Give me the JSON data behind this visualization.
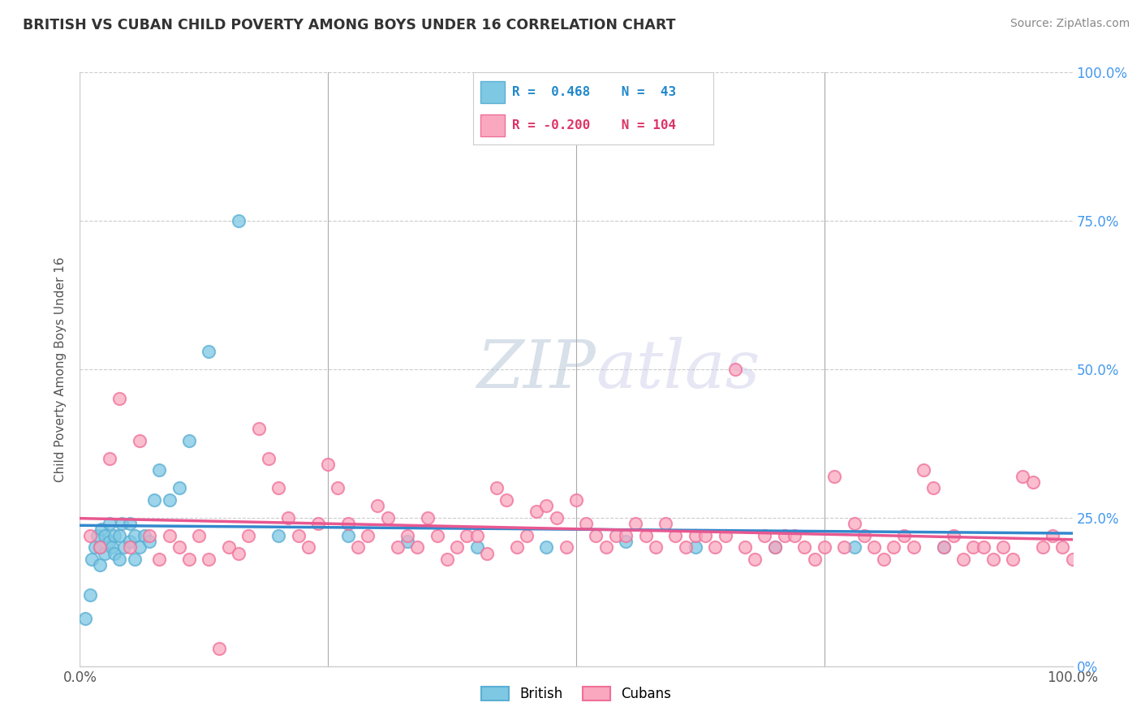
{
  "title": "BRITISH VS CUBAN CHILD POVERTY AMONG BOYS UNDER 16 CORRELATION CHART",
  "source": "Source: ZipAtlas.com",
  "ylabel": "Child Poverty Among Boys Under 16",
  "xlim": [
    0,
    100
  ],
  "ylim": [
    0,
    100
  ],
  "british_color": "#7ec8e3",
  "cuban_color": "#f9a8c0",
  "british_edge_color": "#5aafd4",
  "cuban_edge_color": "#f07098",
  "british_line_color": "#3388cc",
  "cuban_line_color": "#e85890",
  "watermark_zip": "ZIP",
  "watermark_atlas": "atlas",
  "british_x": [
    0.5,
    1,
    1.2,
    1.5,
    1.8,
    2,
    2,
    2.2,
    2.5,
    2.5,
    3,
    3,
    3.2,
    3.5,
    3.5,
    4,
    4,
    4.2,
    4.5,
    5,
    5,
    5.5,
    5.5,
    6,
    6.5,
    7,
    7.5,
    8,
    9,
    10,
    11,
    13,
    16,
    20,
    27,
    33,
    40,
    47,
    55,
    62,
    70,
    78,
    87
  ],
  "british_y": [
    8,
    12,
    18,
    20,
    22,
    17,
    20,
    23,
    19,
    22,
    21,
    24,
    20,
    19,
    22,
    18,
    22,
    24,
    20,
    21,
    24,
    18,
    22,
    20,
    22,
    21,
    28,
    33,
    28,
    30,
    38,
    53,
    75,
    22,
    22,
    21,
    20,
    20,
    21,
    20,
    20,
    20,
    20
  ],
  "cuban_x": [
    1,
    2,
    3,
    4,
    5,
    6,
    7,
    8,
    9,
    10,
    11,
    12,
    13,
    14,
    15,
    16,
    17,
    18,
    19,
    20,
    21,
    22,
    23,
    24,
    25,
    26,
    27,
    28,
    29,
    30,
    31,
    32,
    33,
    34,
    35,
    36,
    37,
    38,
    39,
    40,
    41,
    42,
    43,
    44,
    45,
    46,
    47,
    48,
    49,
    50,
    51,
    52,
    53,
    54,
    55,
    56,
    57,
    58,
    59,
    60,
    61,
    62,
    63,
    64,
    65,
    66,
    67,
    68,
    69,
    70,
    71,
    72,
    73,
    74,
    75,
    76,
    77,
    78,
    79,
    80,
    81,
    82,
    83,
    84,
    85,
    86,
    87,
    88,
    89,
    90,
    91,
    92,
    93,
    94,
    95,
    96,
    97,
    98,
    99,
    100,
    101,
    102,
    103,
    104
  ],
  "cuban_y": [
    22,
    20,
    35,
    45,
    20,
    38,
    22,
    18,
    22,
    20,
    18,
    22,
    18,
    3,
    20,
    19,
    22,
    40,
    35,
    30,
    25,
    22,
    20,
    24,
    34,
    30,
    24,
    20,
    22,
    27,
    25,
    20,
    22,
    20,
    25,
    22,
    18,
    20,
    22,
    22,
    19,
    30,
    28,
    20,
    22,
    26,
    27,
    25,
    20,
    28,
    24,
    22,
    20,
    22,
    22,
    24,
    22,
    20,
    24,
    22,
    20,
    22,
    22,
    20,
    22,
    50,
    20,
    18,
    22,
    20,
    22,
    22,
    20,
    18,
    20,
    32,
    20,
    24,
    22,
    20,
    18,
    20,
    22,
    20,
    33,
    30,
    20,
    22,
    18,
    20,
    20,
    18,
    20,
    18,
    32,
    31,
    20,
    22,
    20,
    18,
    20,
    18,
    19,
    18
  ]
}
